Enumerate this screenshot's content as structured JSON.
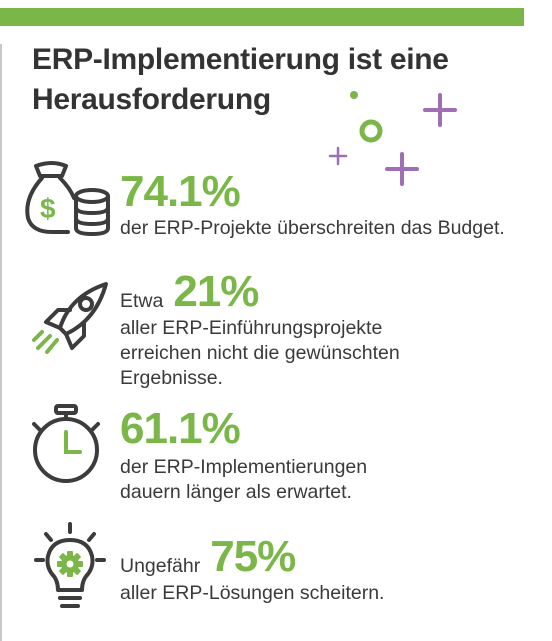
{
  "colors": {
    "accent": "#7ab648",
    "purple": "#a06eb4",
    "text": "#3a3a3a",
    "icon": "#3c3c3c"
  },
  "title": {
    "line1": "ERP-Implementierung ist eine",
    "line2": "Herausforderung"
  },
  "stats": [
    {
      "icon": "money-bag-coins-icon",
      "prefix": "",
      "value": "74.1%",
      "lines": [
        "der ERP-Projekte überschreiten das Budget."
      ]
    },
    {
      "icon": "rocket-icon",
      "prefix": "Etwa",
      "value": "21%",
      "lines": [
        "aller ERP-Einführungsprojekte",
        "erreichen nicht die gewünschten",
        "Ergebnisse."
      ]
    },
    {
      "icon": "stopwatch-icon",
      "prefix": "",
      "value": "61.1%",
      "lines": [
        "der ERP-Implementierungen",
        "dauern länger als erwartet."
      ]
    },
    {
      "icon": "lightbulb-gear-icon",
      "prefix": "Ungefähr",
      "value": "75%",
      "lines": [
        "aller ERP-Lösungen scheitern."
      ]
    }
  ]
}
